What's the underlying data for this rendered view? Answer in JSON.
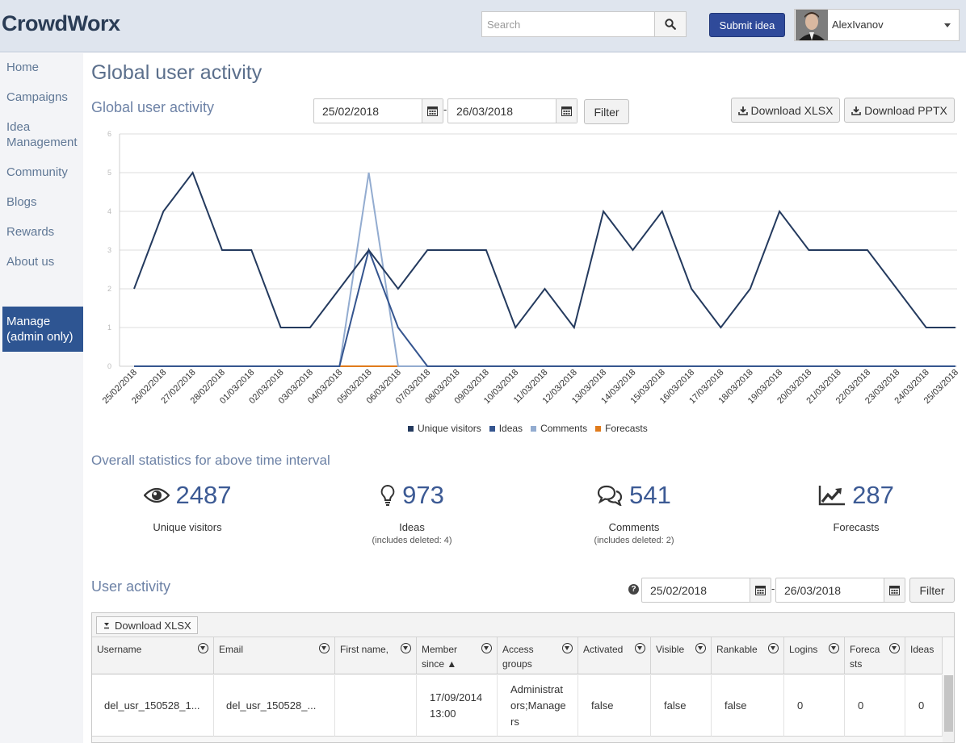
{
  "header": {
    "logo": "CrowdWorx",
    "search_placeholder": "Search",
    "submit_label": "Submit idea",
    "user_name": "AlexIvanov"
  },
  "sidebar": {
    "items": [
      {
        "label": "Home"
      },
      {
        "label": "Campaigns"
      },
      {
        "label": "Idea Management"
      },
      {
        "label": "Community"
      },
      {
        "label": "Blogs"
      },
      {
        "label": "Rewards"
      },
      {
        "label": "About us"
      }
    ],
    "manage_label": "Manage (admin only)"
  },
  "page_title": "Global user activity",
  "activity": {
    "title": "Global user activity",
    "date_from": "25/02/2018",
    "date_to": "26/03/2018",
    "dash": "-",
    "filter_label": "Filter",
    "download_xlsx": "Download XLSX",
    "download_pptx": "Download PPTX"
  },
  "colors": {
    "unique_visitors": "#243a5e",
    "ideas": "#35558f",
    "comments": "#93acd0",
    "forecasts": "#e07b1c"
  },
  "chart_data": {
    "type": "line",
    "title": "",
    "xlabel": "",
    "ylabel": "",
    "ylim": [
      0,
      6
    ],
    "yticks": [
      "0",
      "1",
      "2",
      "3",
      "4",
      "5",
      "6"
    ],
    "grid": true,
    "legend_position": "bottom",
    "categories": [
      "25/02/2018",
      "26/02/2018",
      "27/02/2018",
      "28/02/2018",
      "01/03/2018",
      "02/03/2018",
      "03/03/2018",
      "04/03/2018",
      "05/03/2018",
      "06/03/2018",
      "07/03/2018",
      "08/03/2018",
      "09/03/2018",
      "10/03/2018",
      "11/03/2018",
      "12/03/2018",
      "13/03/2018",
      "14/03/2018",
      "15/03/2018",
      "16/03/2018",
      "17/03/2018",
      "18/03/2018",
      "19/03/2018",
      "20/03/2018",
      "21/03/2018",
      "22/03/2018",
      "23/03/2018",
      "24/03/2018",
      "25/03/2018"
    ],
    "series": [
      {
        "name": "Unique visitors",
        "values": [
          2,
          4,
          5,
          3,
          3,
          1,
          1,
          2,
          3,
          2,
          3,
          3,
          3,
          1,
          2,
          1,
          4,
          3,
          4,
          2,
          1,
          2,
          4,
          3,
          3,
          3,
          2,
          1,
          1
        ]
      },
      {
        "name": "Ideas",
        "values": [
          0,
          0,
          0,
          0,
          0,
          0,
          0,
          0,
          3,
          1,
          0,
          0,
          0,
          0,
          0,
          0,
          0,
          0,
          0,
          0,
          0,
          0,
          0,
          0,
          0,
          0,
          0,
          0,
          0
        ]
      },
      {
        "name": "Comments",
        "values": [
          0,
          0,
          0,
          0,
          0,
          0,
          0,
          0,
          5,
          0,
          0,
          0,
          0,
          0,
          0,
          0,
          0,
          0,
          0,
          0,
          0,
          0,
          0,
          0,
          0,
          0,
          0,
          0,
          0
        ]
      },
      {
        "name": "Forecasts",
        "values": [
          0,
          0,
          0,
          0,
          0,
          0,
          0,
          0,
          0,
          0,
          0,
          0,
          0,
          0,
          0,
          0,
          0,
          0,
          0,
          0,
          0,
          0,
          0,
          0,
          0,
          0,
          0,
          0,
          0
        ]
      }
    ]
  },
  "stats": {
    "title": "Overall statistics for above time interval",
    "visitors": {
      "value": "2487",
      "label": "Unique visitors"
    },
    "ideas": {
      "value": "973",
      "label": "Ideas",
      "sub": "(includes deleted: 4)"
    },
    "comments": {
      "value": "541",
      "label": "Comments",
      "sub": "(includes deleted: 2)"
    },
    "forecasts": {
      "value": "287",
      "label": "Forecasts"
    }
  },
  "user_activity": {
    "title": "User activity",
    "date_from": "25/02/2018",
    "date_to": "26/03/2018",
    "dash": "-",
    "filter_label": "Filter",
    "download_xlsx": "Download XLSX",
    "columns": [
      "Username",
      "Email",
      "First name,",
      "Member since ▲",
      "Access groups",
      "Activated",
      "Visible",
      "Rankable",
      "Logins",
      "Forecasts",
      "Ideas"
    ],
    "row": [
      "del_usr_150528_1...",
      "del_usr_150528_...",
      "",
      "17/09/2014 13:00",
      "Administrators;Managers",
      "false",
      "false",
      "false",
      "0",
      "0",
      "0"
    ]
  }
}
